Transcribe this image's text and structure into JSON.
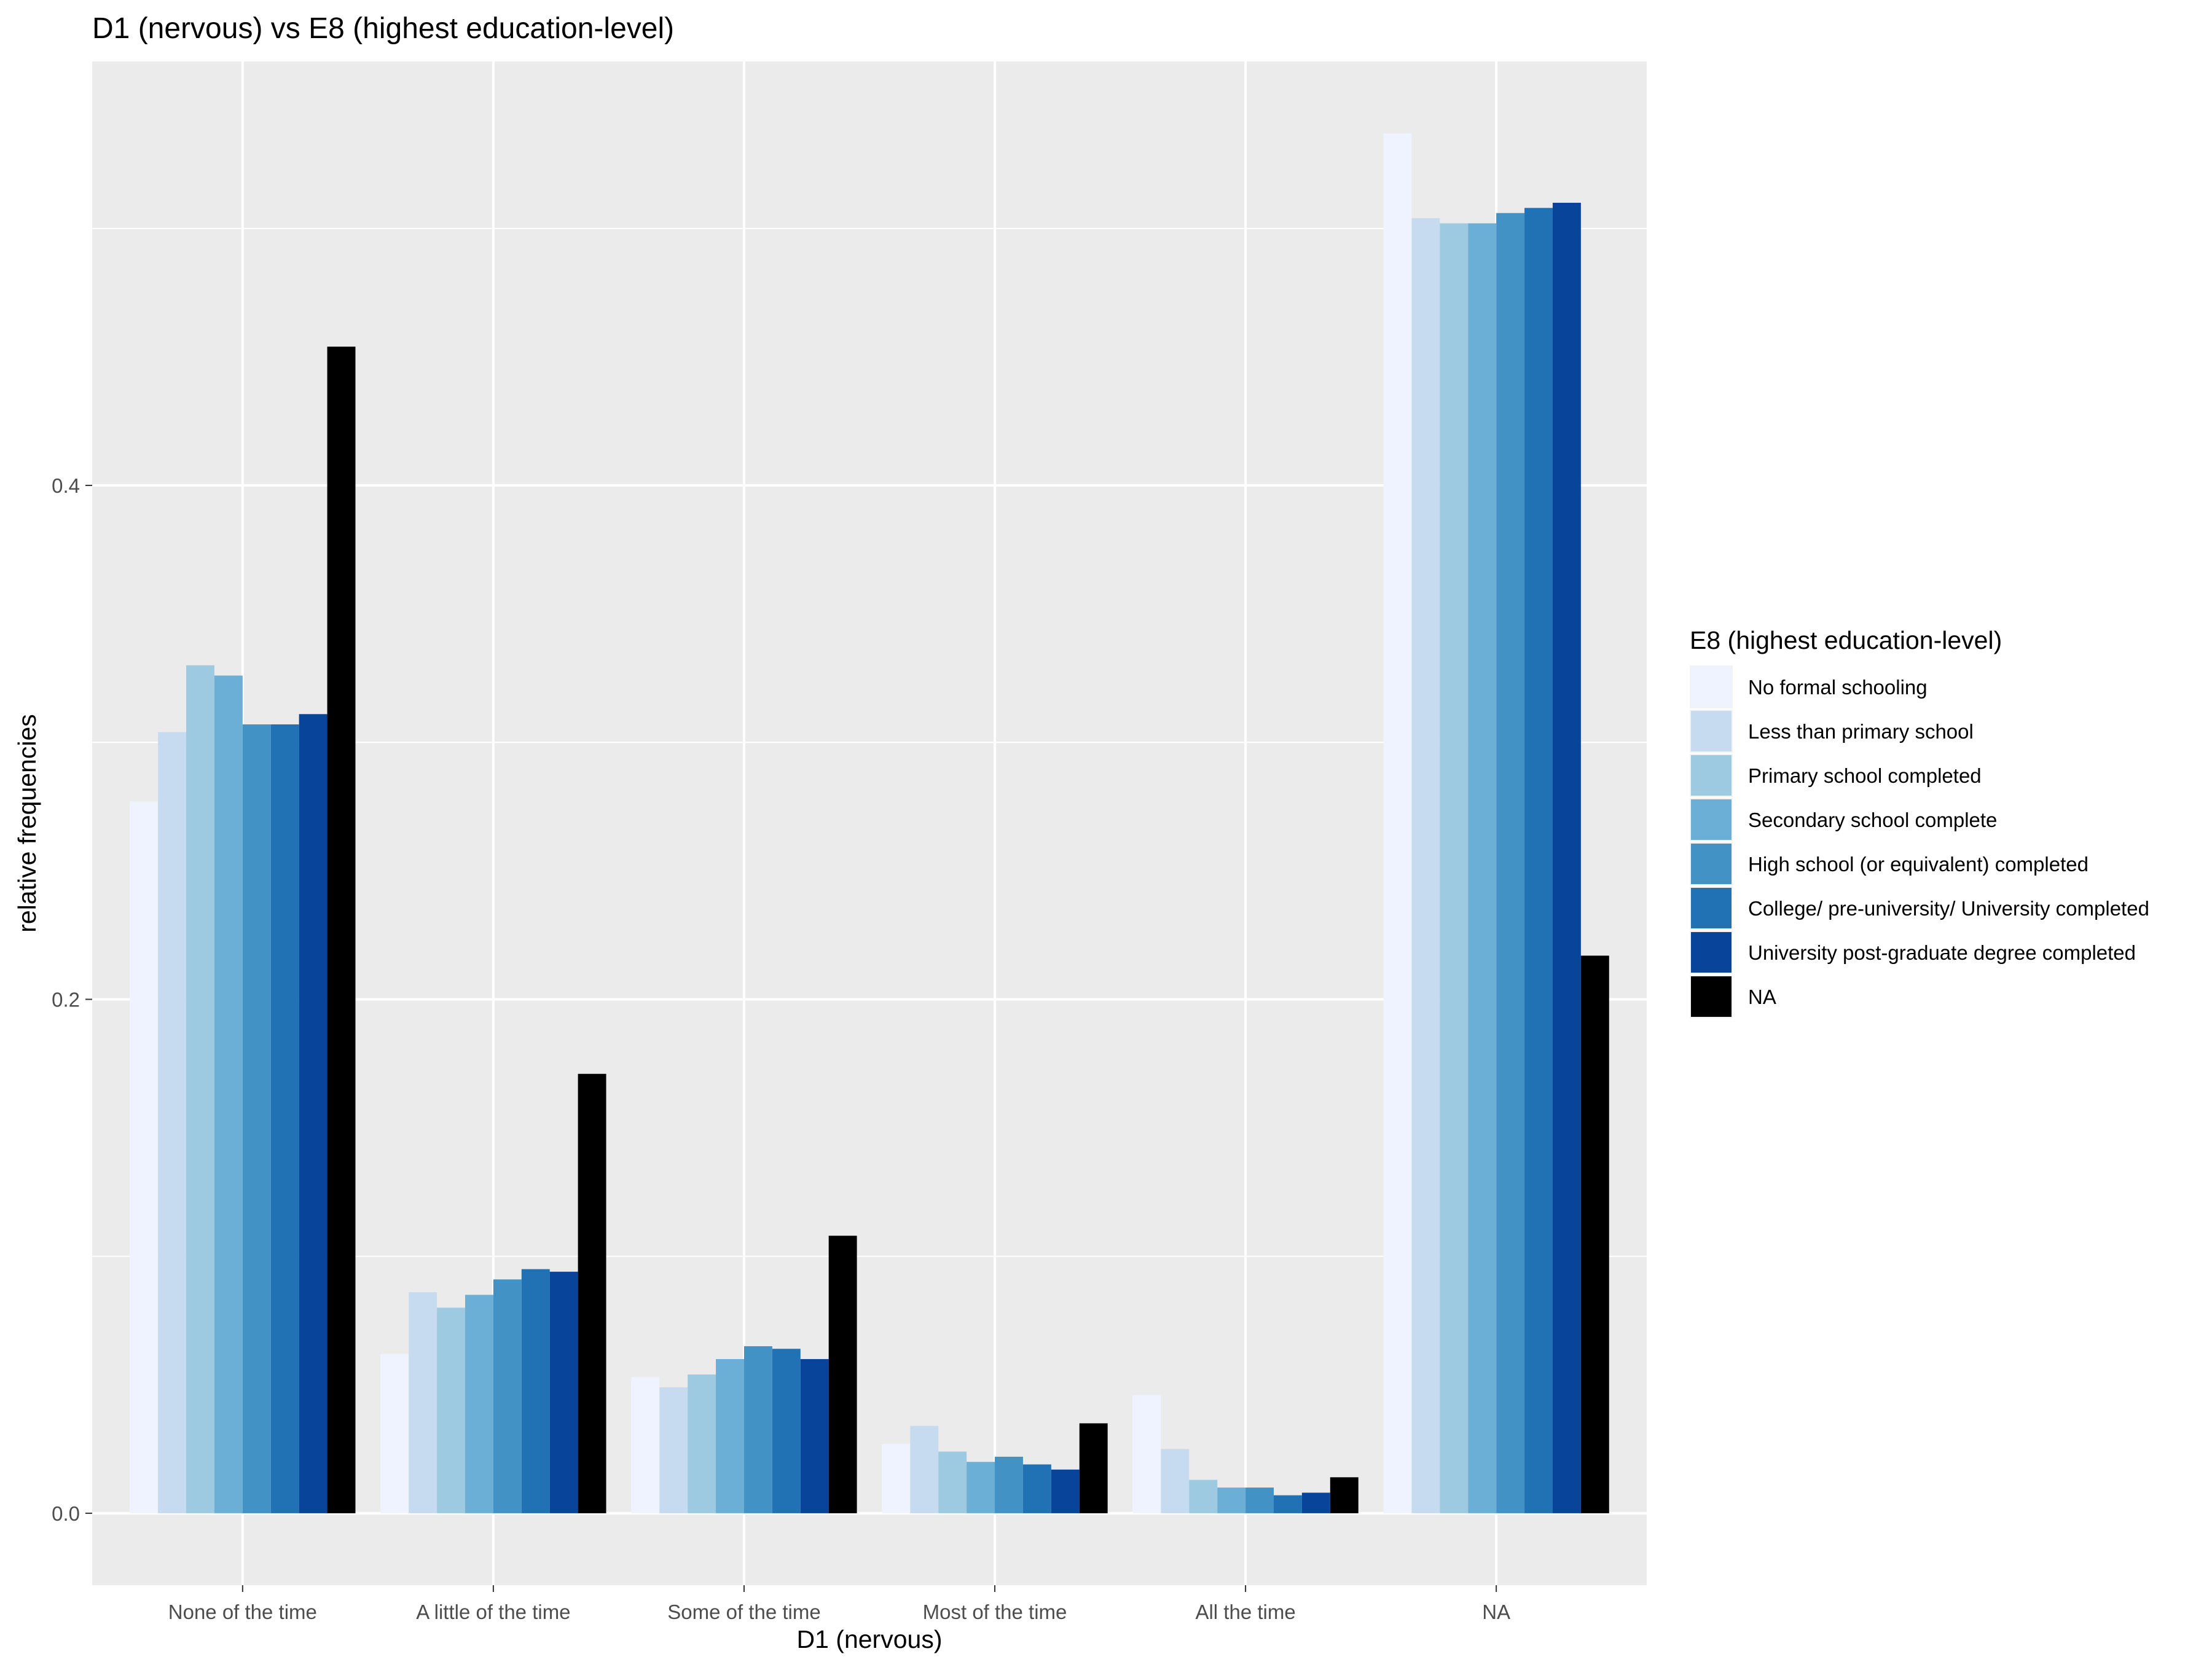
{
  "chart_data": {
    "type": "bar",
    "title": "D1 (nervous) vs E8 (highest education-level)",
    "xlabel": "D1 (nervous)",
    "ylabel": "relative frequencies",
    "ylim": [
      -0.028,
      0.565
    ],
    "yticks": [
      0.0,
      0.2,
      0.4
    ],
    "ytick_labels": [
      "0.0",
      "0.2",
      "0.4"
    ],
    "grid": true,
    "legend_position": "right",
    "legend_title": "E8 (highest education-level)",
    "categories": [
      "None of the time",
      "A little of the time",
      "Some of the time",
      "Most of the time",
      "All the time",
      "NA"
    ],
    "series": [
      {
        "name": "No formal schooling",
        "color": "#eff3ff",
        "values": [
          0.277,
          0.062,
          0.053,
          0.027,
          0.046,
          0.537
        ]
      },
      {
        "name": "Less than primary school",
        "color": "#c6dbef",
        "values": [
          0.304,
          0.086,
          0.049,
          0.034,
          0.025,
          0.504
        ]
      },
      {
        "name": "Primary school completed",
        "color": "#9ecae1",
        "values": [
          0.33,
          0.08,
          0.054,
          0.024,
          0.013,
          0.502
        ]
      },
      {
        "name": "Secondary school complete",
        "color": "#6baed6",
        "values": [
          0.326,
          0.085,
          0.06,
          0.02,
          0.01,
          0.502
        ]
      },
      {
        "name": "High school (or equivalent) completed",
        "color": "#4292c6",
        "values": [
          0.307,
          0.091,
          0.065,
          0.022,
          0.01,
          0.506
        ]
      },
      {
        "name": "College/ pre-university/ University completed",
        "color": "#2171b5",
        "values": [
          0.307,
          0.095,
          0.064,
          0.019,
          0.007,
          0.508
        ]
      },
      {
        "name": "University post-graduate degree completed",
        "color": "#08459a",
        "values": [
          0.311,
          0.094,
          0.06,
          0.017,
          0.008,
          0.51
        ]
      },
      {
        "name": "NA",
        "color": "#000000",
        "values": [
          0.454,
          0.171,
          0.108,
          0.035,
          0.014,
          0.217
        ]
      }
    ]
  }
}
